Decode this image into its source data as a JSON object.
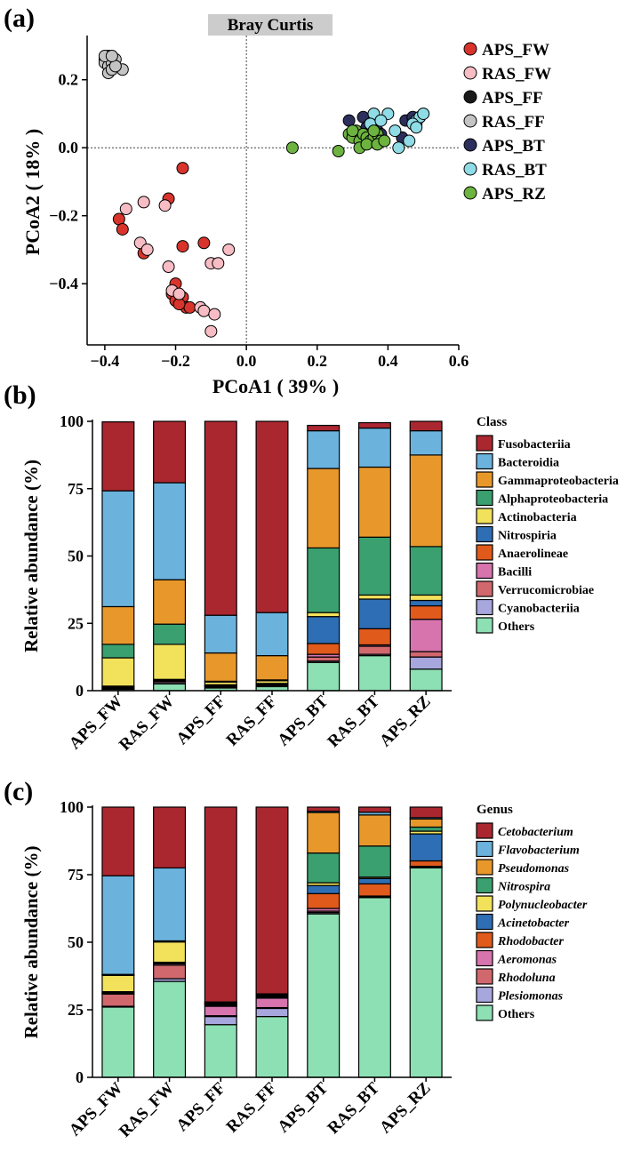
{
  "chart_data": [
    {
      "type": "scatter",
      "panel_label": "(a)",
      "title": "Bray Curtis",
      "xlabel": "PCoA1 ( 39% )",
      "ylabel": "PCoA2 ( 18% )",
      "xlim": [
        -0.45,
        0.6
      ],
      "ylim": [
        -0.58,
        0.33
      ],
      "xticks": [
        "−0.4",
        "−0.2",
        "0.0",
        "0.2",
        "0.4",
        "0.6"
      ],
      "yticks": [
        "0.2",
        "0.0",
        "−0.2",
        "−0.4"
      ],
      "series": [
        {
          "name": "APS_FW",
          "color": "#d8342c",
          "points": [
            [
              -0.18,
              -0.06
            ],
            [
              -0.36,
              -0.21
            ],
            [
              -0.35,
              -0.24
            ],
            [
              -0.22,
              -0.15
            ],
            [
              -0.18,
              -0.29
            ],
            [
              -0.12,
              -0.28
            ],
            [
              -0.29,
              -0.31
            ],
            [
              -0.2,
              -0.4
            ],
            [
              -0.21,
              -0.43
            ],
            [
              -0.2,
              -0.45
            ],
            [
              -0.18,
              -0.44
            ],
            [
              -0.17,
              -0.47
            ],
            [
              -0.16,
              -0.47
            ],
            [
              -0.19,
              -0.46
            ]
          ]
        },
        {
          "name": "RAS_FW",
          "color": "#f7bcc4",
          "points": [
            [
              -0.34,
              -0.18
            ],
            [
              -0.29,
              -0.16
            ],
            [
              -0.23,
              -0.17
            ],
            [
              -0.3,
              -0.28
            ],
            [
              -0.22,
              -0.35
            ],
            [
              -0.28,
              -0.3
            ],
            [
              -0.05,
              -0.3
            ],
            [
              -0.1,
              -0.34
            ],
            [
              -0.08,
              -0.34
            ],
            [
              -0.21,
              -0.42
            ],
            [
              -0.19,
              -0.43
            ],
            [
              -0.13,
              -0.47
            ],
            [
              -0.12,
              -0.48
            ],
            [
              -0.09,
              -0.49
            ],
            [
              -0.1,
              -0.54
            ]
          ]
        },
        {
          "name": "APS_FF",
          "color": "#1a1a1a",
          "points": [
            [
              -0.4,
              0.26
            ],
            [
              -0.39,
              0.27
            ],
            [
              -0.38,
              0.26
            ],
            [
              -0.39,
              0.25
            ]
          ]
        },
        {
          "name": "RAS_FF",
          "color": "#c4c4c4",
          "points": [
            [
              -0.4,
              0.25
            ],
            [
              -0.39,
              0.24
            ],
            [
              -0.38,
              0.25
            ],
            [
              -0.37,
              0.26
            ],
            [
              -0.39,
              0.22
            ],
            [
              -0.38,
              0.23
            ],
            [
              -0.35,
              0.23
            ],
            [
              -0.4,
              0.27
            ],
            [
              -0.37,
              0.24
            ],
            [
              -0.38,
              0.27
            ]
          ]
        },
        {
          "name": "APS_BT",
          "color": "#2c2f5c",
          "points": [
            [
              0.29,
              0.08
            ],
            [
              0.33,
              0.09
            ],
            [
              0.35,
              0.07
            ],
            [
              0.36,
              0.08
            ],
            [
              0.37,
              0.05
            ],
            [
              0.44,
              0.03
            ],
            [
              0.45,
              0.08
            ],
            [
              0.47,
              0.09
            ],
            [
              0.48,
              0.07
            ],
            [
              0.34,
              0.06
            ],
            [
              0.38,
              0.04
            ],
            [
              0.49,
              0.09
            ]
          ]
        },
        {
          "name": "RAS_BT",
          "color": "#8fdce6",
          "points": [
            [
              0.36,
              0.1
            ],
            [
              0.4,
              0.1
            ],
            [
              0.35,
              0.07
            ],
            [
              0.38,
              0.08
            ],
            [
              0.42,
              0.05
            ],
            [
              0.48,
              0.08
            ],
            [
              0.49,
              0.09
            ],
            [
              0.5,
              0.1
            ],
            [
              0.47,
              0.07
            ],
            [
              0.46,
              0.02
            ],
            [
              0.43,
              0.0
            ],
            [
              0.48,
              0.06
            ]
          ]
        },
        {
          "name": "APS_RZ",
          "color": "#6cb33f",
          "points": [
            [
              0.13,
              0.0
            ],
            [
              0.26,
              -0.01
            ],
            [
              0.29,
              0.04
            ],
            [
              0.3,
              0.03
            ],
            [
              0.31,
              0.05
            ],
            [
              0.32,
              0.02
            ],
            [
              0.33,
              0.04
            ],
            [
              0.34,
              0.03
            ],
            [
              0.35,
              0.02
            ],
            [
              0.36,
              0.03
            ],
            [
              0.37,
              0.04
            ],
            [
              0.38,
              0.02
            ],
            [
              0.32,
              0.0
            ],
            [
              0.34,
              0.01
            ],
            [
              0.37,
              0.01
            ],
            [
              0.39,
              0.02
            ],
            [
              0.36,
              0.05
            ],
            [
              0.3,
              0.05
            ]
          ]
        }
      ]
    },
    {
      "type": "bar",
      "stacked": true,
      "panel_label": "(b)",
      "ylabel": "Relative abundance (%)",
      "ylim": [
        0,
        100
      ],
      "yticks": [
        "0",
        "25",
        "50",
        "75",
        "100"
      ],
      "legend_title": "Class",
      "categories": [
        "APS_FW",
        "RAS_FW",
        "APS_FF",
        "RAS_FF",
        "APS_BT",
        "RAS_BT",
        "APS_RZ"
      ],
      "series": [
        {
          "name": "Others",
          "color": "#8de0b3",
          "values": [
            0.5,
            2.5,
            1.0,
            1.5,
            10.5,
            13.0,
            8.0
          ]
        },
        {
          "name": "Cyanobacteriia",
          "color": "#a7a7de",
          "values": [
            0.3,
            0.5,
            0.3,
            0.3,
            0.5,
            0.5,
            4.5
          ]
        },
        {
          "name": "Verrucomicrobiae",
          "color": "#d0686e",
          "values": [
            0.3,
            0.5,
            0.3,
            0.3,
            1.5,
            3.0,
            2.0
          ]
        },
        {
          "name": "Bacilli",
          "color": "#d774ad",
          "values": [
            0.2,
            0.3,
            0.2,
            0.2,
            1.0,
            0.5,
            12.0
          ]
        },
        {
          "name": "Anaerolineae",
          "color": "#e05a1c",
          "values": [
            0.2,
            0.2,
            0.2,
            0.2,
            4.0,
            6.0,
            5.0
          ]
        },
        {
          "name": "Nitrospiria",
          "color": "#2e6eb4",
          "values": [
            0.2,
            0.2,
            0.2,
            0.2,
            10.0,
            11.0,
            2.0
          ]
        },
        {
          "name": "Actinobacteria",
          "color": "#f2e15b",
          "values": [
            10.5,
            13.0,
            1.0,
            1.0,
            1.5,
            1.5,
            2.0
          ]
        },
        {
          "name": "Alphaproteobacteria",
          "color": "#3aa06f",
          "values": [
            5.0,
            7.5,
            0.3,
            0.3,
            24.0,
            21.5,
            18.0
          ]
        },
        {
          "name": "Gammaproteobacteria",
          "color": "#e8982b",
          "values": [
            14.0,
            16.5,
            10.5,
            9.0,
            29.5,
            26.0,
            34.0
          ]
        },
        {
          "name": "Bacteroidia",
          "color": "#6bb3dd",
          "values": [
            43.0,
            36.0,
            14.0,
            16.0,
            14.0,
            14.5,
            9.0
          ]
        },
        {
          "name": "Fusobacteriia",
          "color": "#ab2730",
          "values": [
            25.6,
            22.8,
            72.0,
            71.0,
            2.0,
            2.0,
            3.5
          ]
        }
      ],
      "legend_order": [
        "Fusobacteriia",
        "Bacteroidia",
        "Gammaproteobacteria",
        "Alphaproteobacteria",
        "Actinobacteria",
        "Nitrospiria",
        "Anaerolineae",
        "Bacilli",
        "Verrucomicrobiae",
        "Cyanobacteriia",
        "Others"
      ]
    },
    {
      "type": "bar",
      "stacked": true,
      "panel_label": "(c)",
      "ylabel": "Relative abundance (%)",
      "ylim": [
        0,
        100
      ],
      "yticks": [
        "0",
        "25",
        "50",
        "75",
        "100"
      ],
      "legend_title": "Genus",
      "italic_legend": true,
      "categories": [
        "APS_FW",
        "RAS_FW",
        "APS_FF",
        "RAS_FF",
        "APS_BT",
        "RAS_BT",
        "APS_RZ"
      ],
      "series": [
        {
          "name": "Others",
          "color": "#8de0b3",
          "values": [
            26.0,
            35.5,
            19.5,
            22.5,
            60.5,
            66.5,
            77.5
          ]
        },
        {
          "name": "Plesiomonas",
          "color": "#a7a7de",
          "values": [
            0.3,
            1.0,
            3.0,
            3.0,
            0.5,
            0.2,
            0.2
          ]
        },
        {
          "name": "Rhodoluna",
          "color": "#d0686e",
          "values": [
            4.5,
            5.0,
            0.3,
            0.3,
            0.5,
            0.2,
            0.2
          ]
        },
        {
          "name": "Aeromonas",
          "color": "#d774ad",
          "values": [
            0.3,
            0.5,
            3.5,
            3.5,
            1.0,
            0.2,
            0.2
          ]
        },
        {
          "name": "Rhodobacter",
          "color": "#e05a1c",
          "values": [
            0.3,
            0.3,
            0.3,
            0.3,
            5.5,
            4.5,
            2.0
          ]
        },
        {
          "name": "Acinetobacter",
          "color": "#2e6eb4",
          "values": [
            0.3,
            0.3,
            0.3,
            0.3,
            3.0,
            2.0,
            10.0
          ]
        },
        {
          "name": "Polynucleobacter",
          "color": "#f2e15b",
          "values": [
            6.0,
            7.5,
            0.3,
            0.3,
            1.0,
            0.5,
            1.0
          ]
        },
        {
          "name": "Nitrospira",
          "color": "#3aa06f",
          "values": [
            0.2,
            0.2,
            0.2,
            0.2,
            11.0,
            11.5,
            1.5
          ]
        },
        {
          "name": "Pseudomonas",
          "color": "#e8982b",
          "values": [
            0.2,
            0.2,
            0.2,
            0.2,
            15.0,
            11.5,
            3.0
          ]
        },
        {
          "name": "Flavobacterium",
          "color": "#6bb3dd",
          "values": [
            36.5,
            27.0,
            0.3,
            0.3,
            0.5,
            1.0,
            0.5
          ]
        },
        {
          "name": "Cetobacterium",
          "color": "#ab2730",
          "values": [
            25.4,
            22.5,
            72.1,
            69.1,
            1.5,
            1.9,
            3.9
          ]
        }
      ],
      "legend_order": [
        "Cetobacterium",
        "Flavobacterium",
        "Pseudomonas",
        "Nitrospira",
        "Polynucleobacter",
        "Acinetobacter",
        "Rhodobacter",
        "Aeromonas",
        "Rhodoluna",
        "Plesiomonas",
        "Others"
      ]
    }
  ]
}
